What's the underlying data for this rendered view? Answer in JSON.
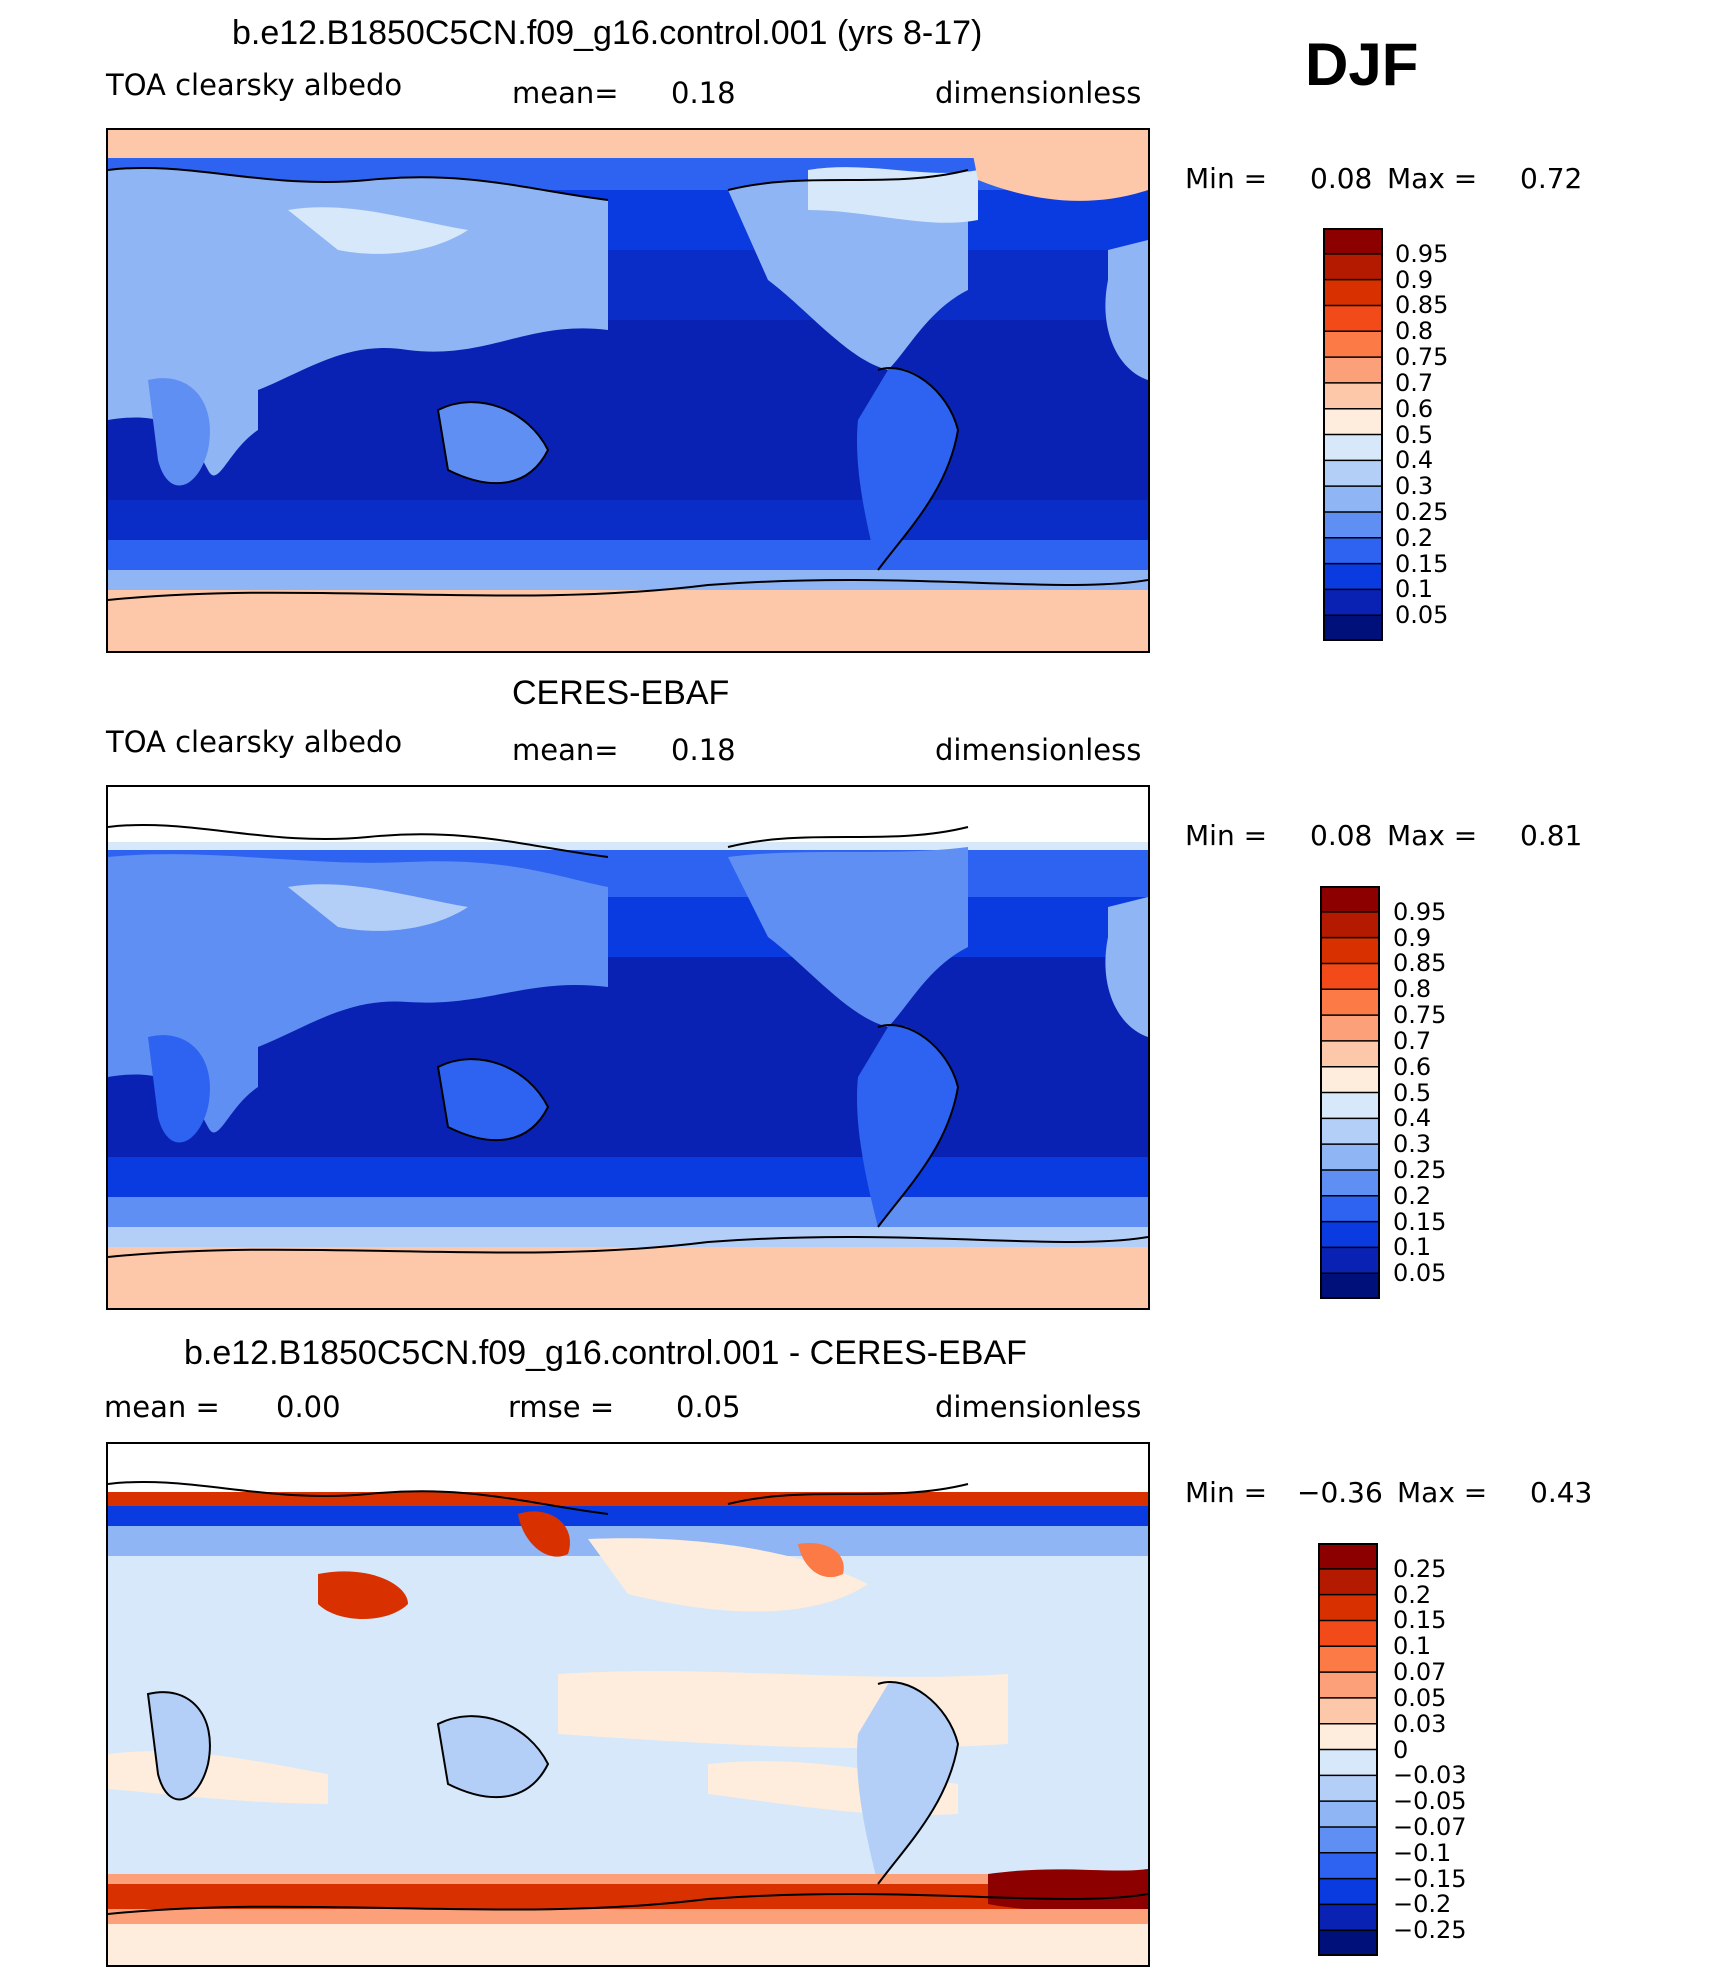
{
  "season": "DJF",
  "chart_data": [
    {
      "type": "heatmap",
      "title": "b.e12.B1850C5CN.f09_g16.control.001 (yrs 8-17)",
      "variable": "TOA clearsky albedo",
      "mean_label": "mean=",
      "mean_value": "0.18",
      "units": "dimensionless",
      "min_label": "Min =",
      "min_value": "0.08",
      "max_label": "Max =",
      "max_value": "0.72",
      "colorbar_levels": [
        "0.95",
        "0.9",
        "0.85",
        "0.8",
        "0.75",
        "0.7",
        "0.6",
        "0.5",
        "0.4",
        "0.3",
        "0.25",
        "0.2",
        "0.15",
        "0.1",
        "0.05"
      ],
      "colorbar_colors": [
        "#8c0000",
        "#b31a00",
        "#d93000",
        "#f24a18",
        "#fb7a45",
        "#fca07a",
        "#fdc7a9",
        "#feeddc",
        "#d6e8fa",
        "#b4cff7",
        "#8fb5f5",
        "#5f8ff2",
        "#2d63f0",
        "#0a3be0",
        "#0a22b4",
        "#00107a"
      ]
    },
    {
      "type": "heatmap",
      "title": "CERES-EBAF",
      "variable": "TOA clearsky albedo",
      "mean_label": "mean=",
      "mean_value": "0.18",
      "units": "dimensionless",
      "min_label": "Min =",
      "min_value": "0.08",
      "max_label": "Max =",
      "max_value": "0.81",
      "colorbar_levels": [
        "0.95",
        "0.9",
        "0.85",
        "0.8",
        "0.75",
        "0.7",
        "0.6",
        "0.5",
        "0.4",
        "0.3",
        "0.25",
        "0.2",
        "0.15",
        "0.1",
        "0.05"
      ],
      "colorbar_colors": [
        "#8c0000",
        "#b31a00",
        "#d93000",
        "#f24a18",
        "#fb7a45",
        "#fca07a",
        "#fdc7a9",
        "#feeddc",
        "#d6e8fa",
        "#b4cff7",
        "#8fb5f5",
        "#5f8ff2",
        "#2d63f0",
        "#0a3be0",
        "#0a22b4",
        "#00107a"
      ]
    },
    {
      "type": "heatmap",
      "title": "b.e12.B1850C5CN.f09_g16.control.001 - CERES-EBAF",
      "mean_label": "mean =",
      "mean_value": "0.00",
      "rmse_label": "rmse =",
      "rmse_value": "0.05",
      "units": "dimensionless",
      "min_label": "Min =",
      "min_value": "−0.36",
      "max_label": "Max =",
      "max_value": "0.43",
      "colorbar_levels": [
        "0.25",
        "0.2",
        "0.15",
        "0.1",
        "0.07",
        "0.05",
        "0.03",
        "0",
        "−0.03",
        "−0.05",
        "−0.07",
        "−0.1",
        "−0.15",
        "−0.2",
        "−0.25"
      ],
      "colorbar_colors": [
        "#8c0000",
        "#b31a00",
        "#d93000",
        "#f24a18",
        "#fb7a45",
        "#fca07a",
        "#fdc7a9",
        "#feeddc",
        "#d6e8fa",
        "#b4cff7",
        "#8fb5f5",
        "#5f8ff2",
        "#2d63f0",
        "#0a3be0",
        "#0a22b4",
        "#00107a"
      ]
    }
  ]
}
